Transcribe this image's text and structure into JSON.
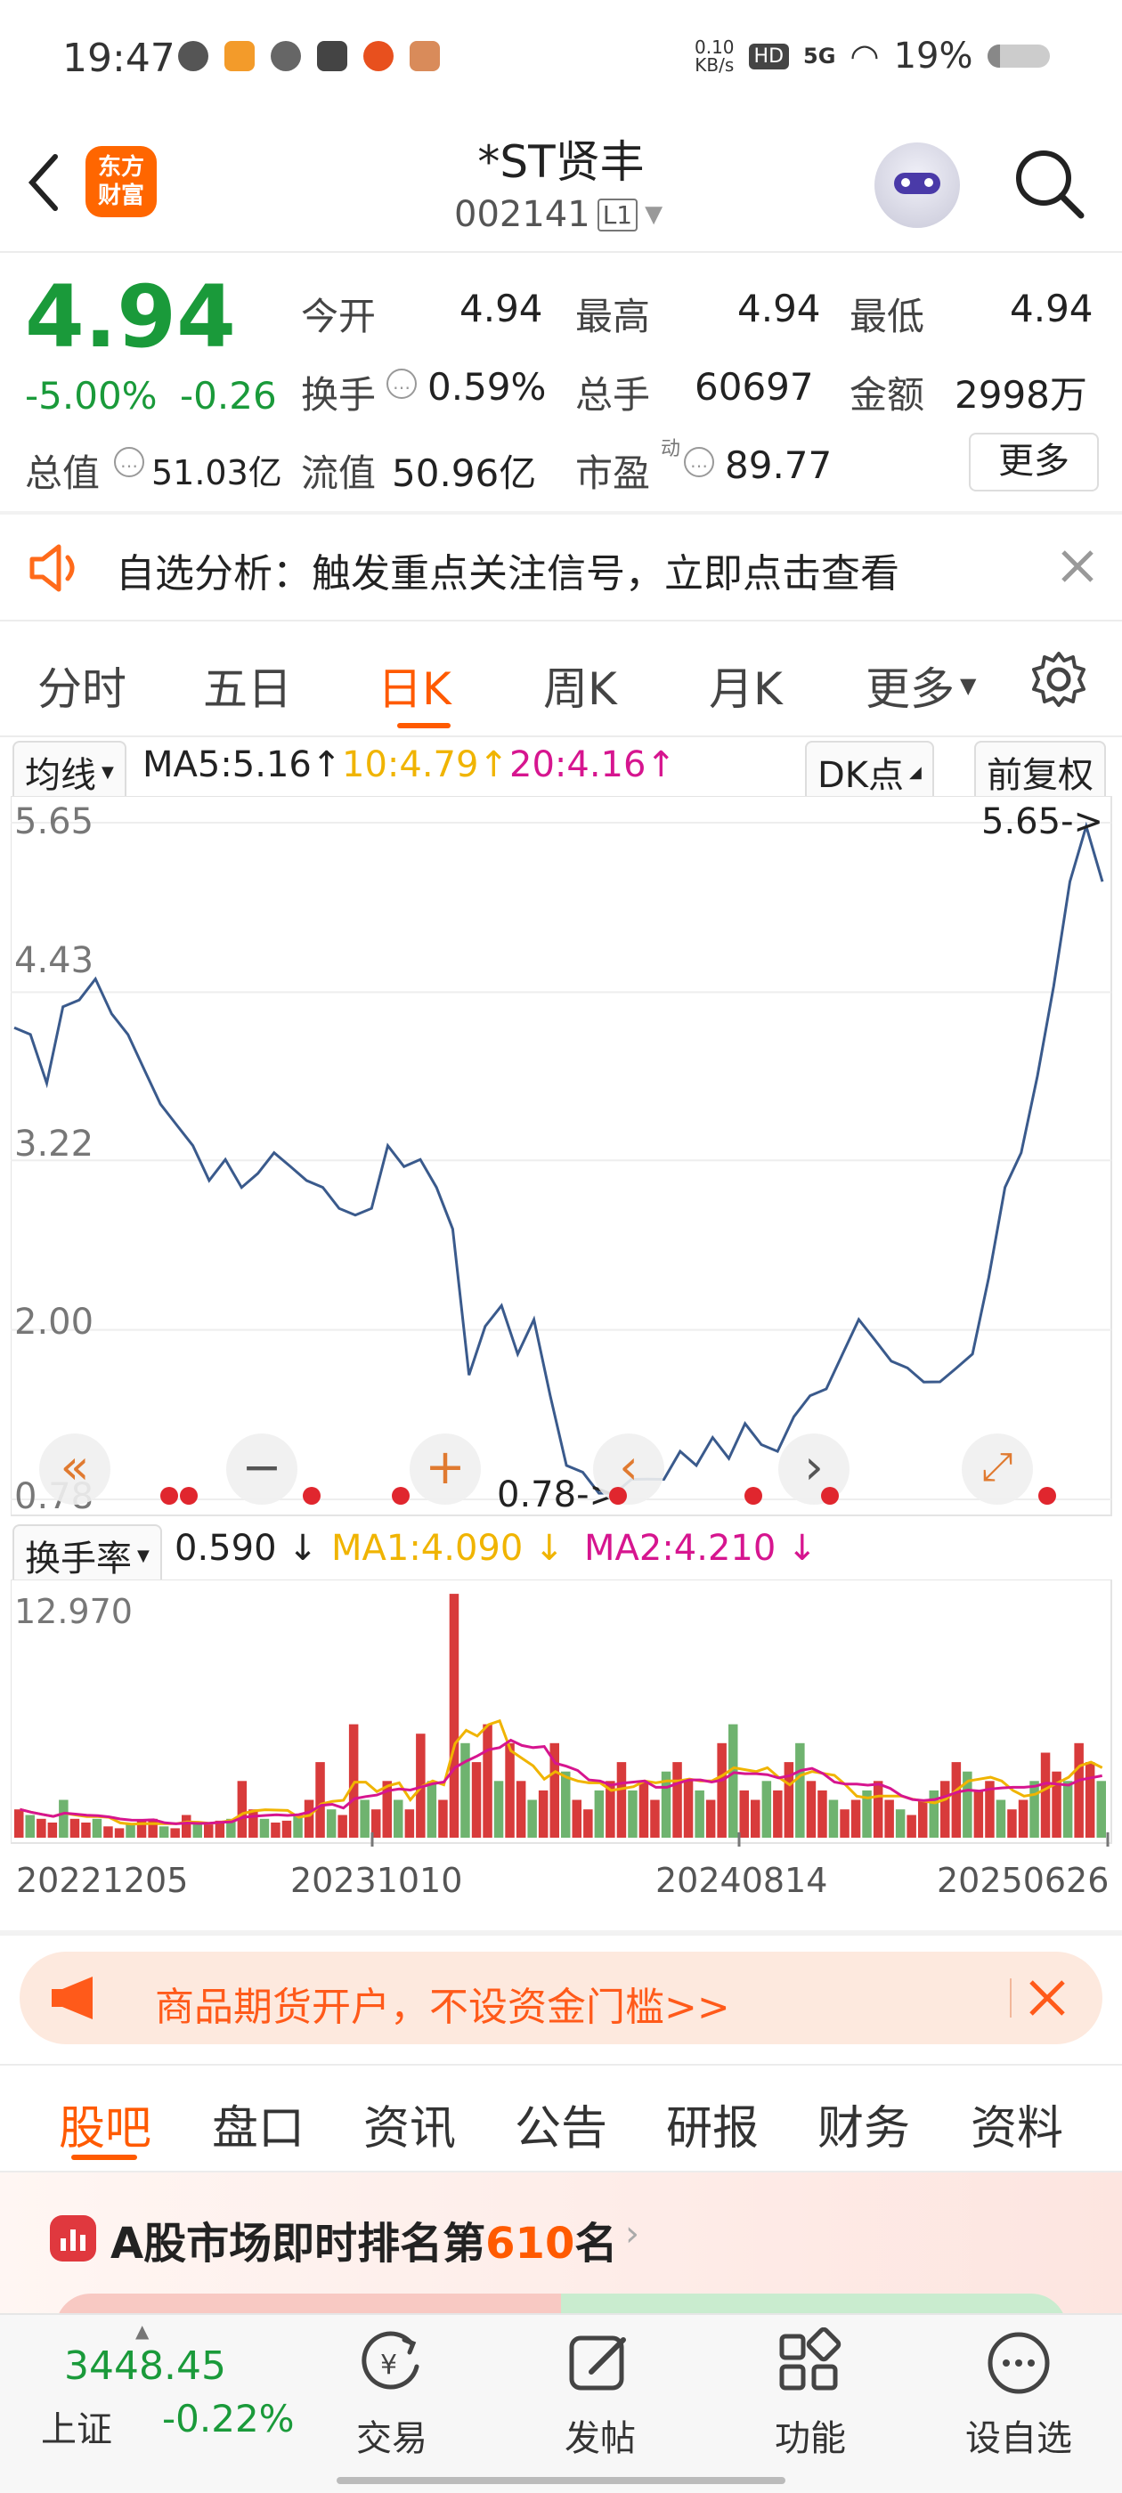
{
  "status_bar": {
    "time": "19:47",
    "net_speed_top": "0.10",
    "net_speed_bottom": "KB/s",
    "hd": "HD",
    "net": "5G",
    "battery": "19%"
  },
  "header": {
    "logo_line1": "东方",
    "logo_line2": "财富",
    "title": "*ST贤丰",
    "code": "002141",
    "level": "L1"
  },
  "quote": {
    "price": "4.94",
    "change_pct": "-5.00%",
    "change": "-0.26",
    "open_label": "今开",
    "open": "4.94",
    "high_label": "最高",
    "high": "4.94",
    "low_label": "最低",
    "low": "4.94",
    "turnover_label": "换手",
    "turnover": "0.59%",
    "volume_label": "总手",
    "volume": "60697",
    "amount_label": "金额",
    "amount": "2998万",
    "total_value_label": "总值",
    "total_value": "51.03亿",
    "float_value_label": "流值",
    "float_value": "50.96亿",
    "pe_label": "市盈",
    "pe_sup": "动",
    "pe": "89.77",
    "more_button": "更多"
  },
  "notice": {
    "text": "自选分析：触发重点关注信号，立即点击查看"
  },
  "chart_tabs": [
    "分时",
    "五日",
    "日K",
    "周K",
    "月K",
    "更多"
  ],
  "active_tab": "日K",
  "ma_bar": {
    "selector": "均线",
    "ma5": "MA5:5.16",
    "ma10": "10:4.79",
    "ma20": "20:4.16",
    "dk_button": "DK点",
    "fq_button": "前复权"
  },
  "chart_data": {
    "type": "line",
    "y_ticks": [
      "5.65",
      "4.43",
      "3.22",
      "2.00",
      "0.78"
    ],
    "ylim": [
      0.78,
      5.65
    ],
    "max_marker": "5.65->",
    "min_marker": "0.78->",
    "x_ticks": [
      "20221205",
      "20231010",
      "20240814",
      "20250626"
    ],
    "price_path": [
      4.2,
      4.1,
      3.8,
      4.3,
      4.4,
      4.5,
      4.3,
      4.1,
      3.9,
      3.6,
      3.5,
      3.3,
      3.1,
      3.2,
      3.05,
      3.1,
      3.3,
      3.15,
      3.1,
      3.0,
      2.9,
      2.8,
      2.9,
      3.3,
      3.2,
      3.2,
      3.05,
      2.7,
      1.7,
      2.0,
      2.2,
      1.8,
      2.1,
      1.5,
      1.05,
      0.95,
      0.85,
      0.8,
      0.95,
      0.9,
      0.95,
      1.1,
      1.05,
      1.2,
      1.1,
      1.3,
      1.2,
      1.1,
      1.4,
      1.5,
      1.6,
      1.8,
      2.1,
      1.9,
      1.8,
      1.7,
      1.65,
      1.6,
      1.75,
      1.8,
      2.4,
      3.0,
      3.3,
      3.8,
      4.5,
      5.2,
      5.65,
      5.2
    ],
    "ma5_arrow": "↑",
    "ma10_arrow": "↑",
    "ma20_arrow": "↑"
  },
  "indicator": {
    "selector": "换手率",
    "value": "0.590 ↓",
    "ma1": "MA1:4.090 ↓",
    "ma2": "MA2:4.210 ↓",
    "top_value": "12.970"
  },
  "turnover_bars": [
    1.5,
    1.2,
    1,
    0.8,
    2,
    1,
    0.8,
    1,
    0.6,
    0.5,
    0.7,
    0.9,
    1,
    0.6,
    0.5,
    1.2,
    0.8,
    0.7,
    0.9,
    1,
    3,
    1.5,
    1,
    0.8,
    0.9,
    1.2,
    2,
    4,
    1.5,
    1.2,
    6,
    2,
    1.5,
    3,
    2,
    1.5,
    5.5,
    3,
    2,
    12.9,
    5,
    4,
    6,
    3,
    5,
    3,
    2,
    2.5,
    5,
    3.5,
    2,
    1.5,
    2.5,
    3,
    4,
    2.5,
    3,
    2,
    3.5,
    4,
    3,
    2.5,
    2,
    5,
    6,
    2.5,
    2,
    3,
    2.5,
    4,
    5,
    3,
    2.5,
    2,
    1.5,
    2,
    2.5,
    3,
    2,
    1.5,
    1.2,
    2,
    2.5,
    3,
    4,
    3.5,
    2.5,
    3,
    2,
    1.5,
    2,
    3,
    4.5,
    3.5,
    3,
    5,
    4,
    3
  ],
  "ad_banner": {
    "text": "商品期货开户，不设资金门槛>>"
  },
  "sub_tabs": [
    "股吧",
    "盘口",
    "资讯",
    "公告",
    "研报",
    "财务",
    "资料"
  ],
  "active_sub_tab": "股吧",
  "ranking": {
    "prefix": "A股市场即时排名第",
    "rank": "610",
    "suffix": "名"
  },
  "bottom_bar": {
    "index_value": "3448.45",
    "index_name": "上证",
    "index_change": "-0.22%",
    "items": [
      "交易",
      "发帖",
      "功能",
      "设自选"
    ]
  },
  "colors": {
    "accent": "#ff6600",
    "down": "#1a9a3a",
    "up": "#e0383e",
    "line": "#3a5a8c",
    "ma10": "#f0b400",
    "ma20": "#d6158f"
  }
}
